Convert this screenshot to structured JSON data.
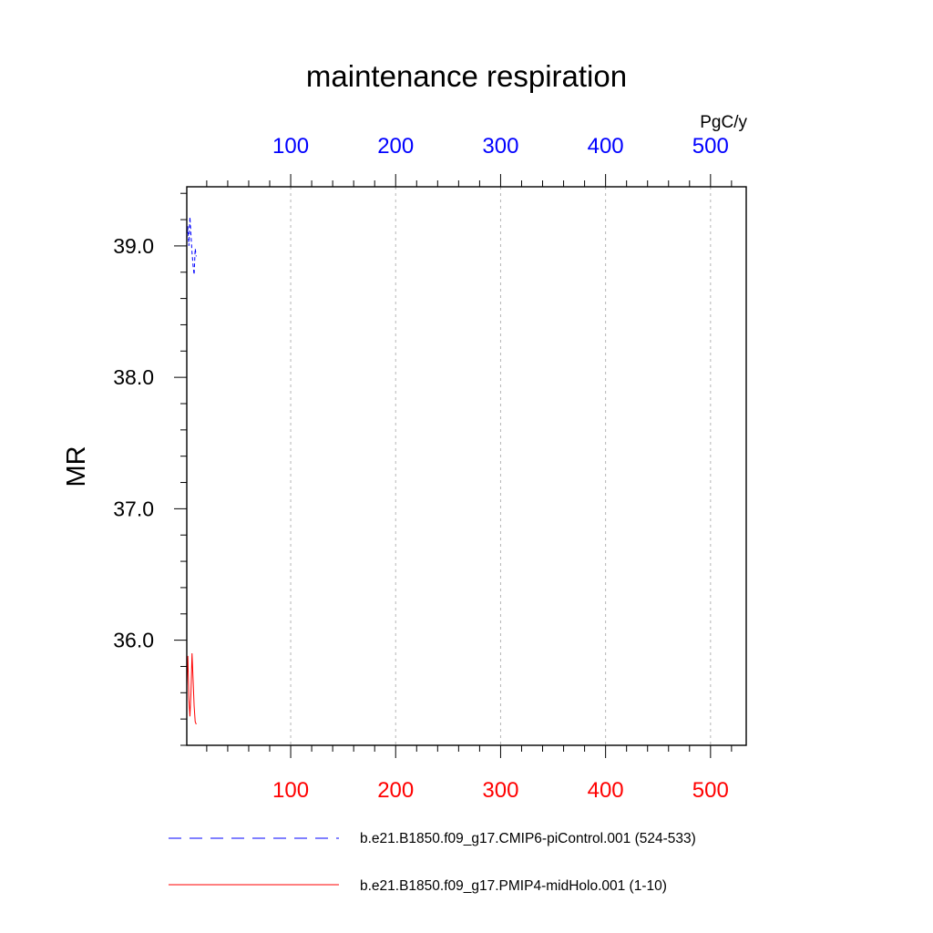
{
  "chart_data": {
    "type": "line",
    "title": "maintenance respiration",
    "units_label": "PgC/y",
    "ylabel": "MR",
    "ylim": [
      35.2,
      39.45
    ],
    "y_ticks": [
      36.0,
      37.0,
      38.0,
      39.0
    ],
    "y_tick_labels": [
      "36.0",
      "37.0",
      "38.0",
      "39.0"
    ],
    "grid": "vertical dashed at major x ticks",
    "legend_position": "bottom",
    "x_axes": [
      {
        "position": "top",
        "color": "#0000ff",
        "xlim": [
          1,
          534
        ],
        "ticks": [
          100,
          200,
          300,
          400,
          500
        ],
        "tick_labels": [
          "100",
          "200",
          "300",
          "400",
          "500"
        ]
      },
      {
        "position": "bottom",
        "color": "#ff0000",
        "xlim": [
          1,
          534
        ],
        "ticks": [
          100,
          200,
          300,
          400,
          500
        ],
        "tick_labels": [
          "100",
          "200",
          "300",
          "400",
          "500"
        ]
      }
    ],
    "series": [
      {
        "name": "b.e21.B1850.f09_g17.CMIP6-piControl.001 (524-533)",
        "color": "#0000ff",
        "dash": "dashed",
        "x": [
          1,
          2,
          3,
          4,
          5,
          6,
          7,
          8,
          9,
          10
        ],
        "y": [
          39.05,
          39.15,
          39.0,
          39.22,
          39.08,
          38.95,
          38.85,
          38.78,
          38.98,
          38.92
        ]
      },
      {
        "name": "b.e21.B1850.f09_g17.PMIP4-midHolo.001 (1-10)",
        "color": "#ff0000",
        "dash": "solid",
        "x": [
          1,
          2,
          3,
          4,
          5,
          6,
          7,
          8,
          9,
          10
        ],
        "y": [
          35.65,
          35.88,
          35.55,
          35.42,
          35.6,
          35.9,
          35.7,
          35.5,
          35.38,
          35.36
        ]
      }
    ]
  }
}
